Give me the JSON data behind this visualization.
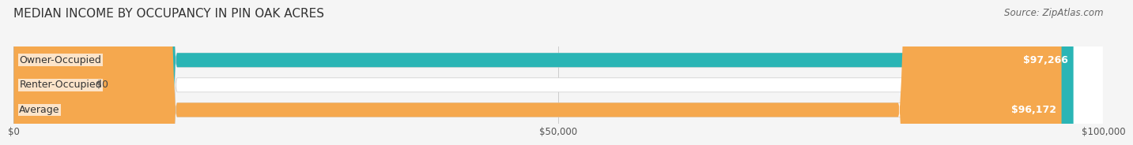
{
  "title": "MEDIAN INCOME BY OCCUPANCY IN PIN OAK ACRES",
  "source": "Source: ZipAtlas.com",
  "categories": [
    "Owner-Occupied",
    "Renter-Occupied",
    "Average"
  ],
  "values": [
    97266,
    0,
    96172
  ],
  "bar_colors": [
    "#2ab5b5",
    "#c9b8d8",
    "#f5a84e"
  ],
  "bar_labels": [
    "$97,266",
    "$0",
    "$96,172"
  ],
  "xlim": [
    0,
    100000
  ],
  "xticks": [
    0,
    50000,
    100000
  ],
  "xticklabels": [
    "$0",
    "$50,000",
    "$100,000"
  ],
  "background_color": "#f5f5f5",
  "bar_bg_color": "#ffffff",
  "title_fontsize": 11,
  "source_fontsize": 8.5,
  "label_fontsize": 9
}
